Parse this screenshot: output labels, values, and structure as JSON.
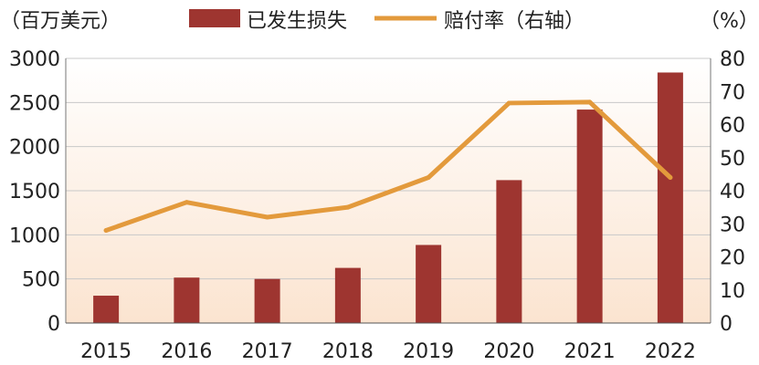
{
  "chart_data": {
    "type": "bar+line",
    "categories": [
      "2015",
      "2016",
      "2017",
      "2018",
      "2019",
      "2020",
      "2021",
      "2022"
    ],
    "series": [
      {
        "name": "已发生损失",
        "type": "bar",
        "axis": "left",
        "values": [
          310,
          515,
          500,
          625,
          885,
          1620,
          2420,
          2840
        ]
      },
      {
        "name": "赔付率（右轴）",
        "type": "line",
        "axis": "right",
        "values": [
          28,
          36.5,
          32,
          35,
          44,
          66.5,
          66.8,
          44
        ]
      }
    ],
    "left_axis": {
      "unit_label": "（百万美元）",
      "ylim": [
        0,
        3000
      ],
      "ticks": [
        "0",
        "500",
        "1000",
        "1500",
        "2000",
        "2500",
        "3000"
      ]
    },
    "right_axis": {
      "unit_label": "（%）",
      "ylim": [
        0,
        80
      ],
      "ticks": [
        "0",
        "10",
        "20",
        "30",
        "40",
        "50",
        "60",
        "70",
        "80"
      ]
    },
    "grid": true,
    "legend_position": "top-center",
    "colors": {
      "bar": "#9e3530",
      "line": "#e39a3c",
      "grid": "#c8c8c8",
      "bg_top": "#ffffff",
      "bg_bottom": "#fbe4d0"
    }
  }
}
